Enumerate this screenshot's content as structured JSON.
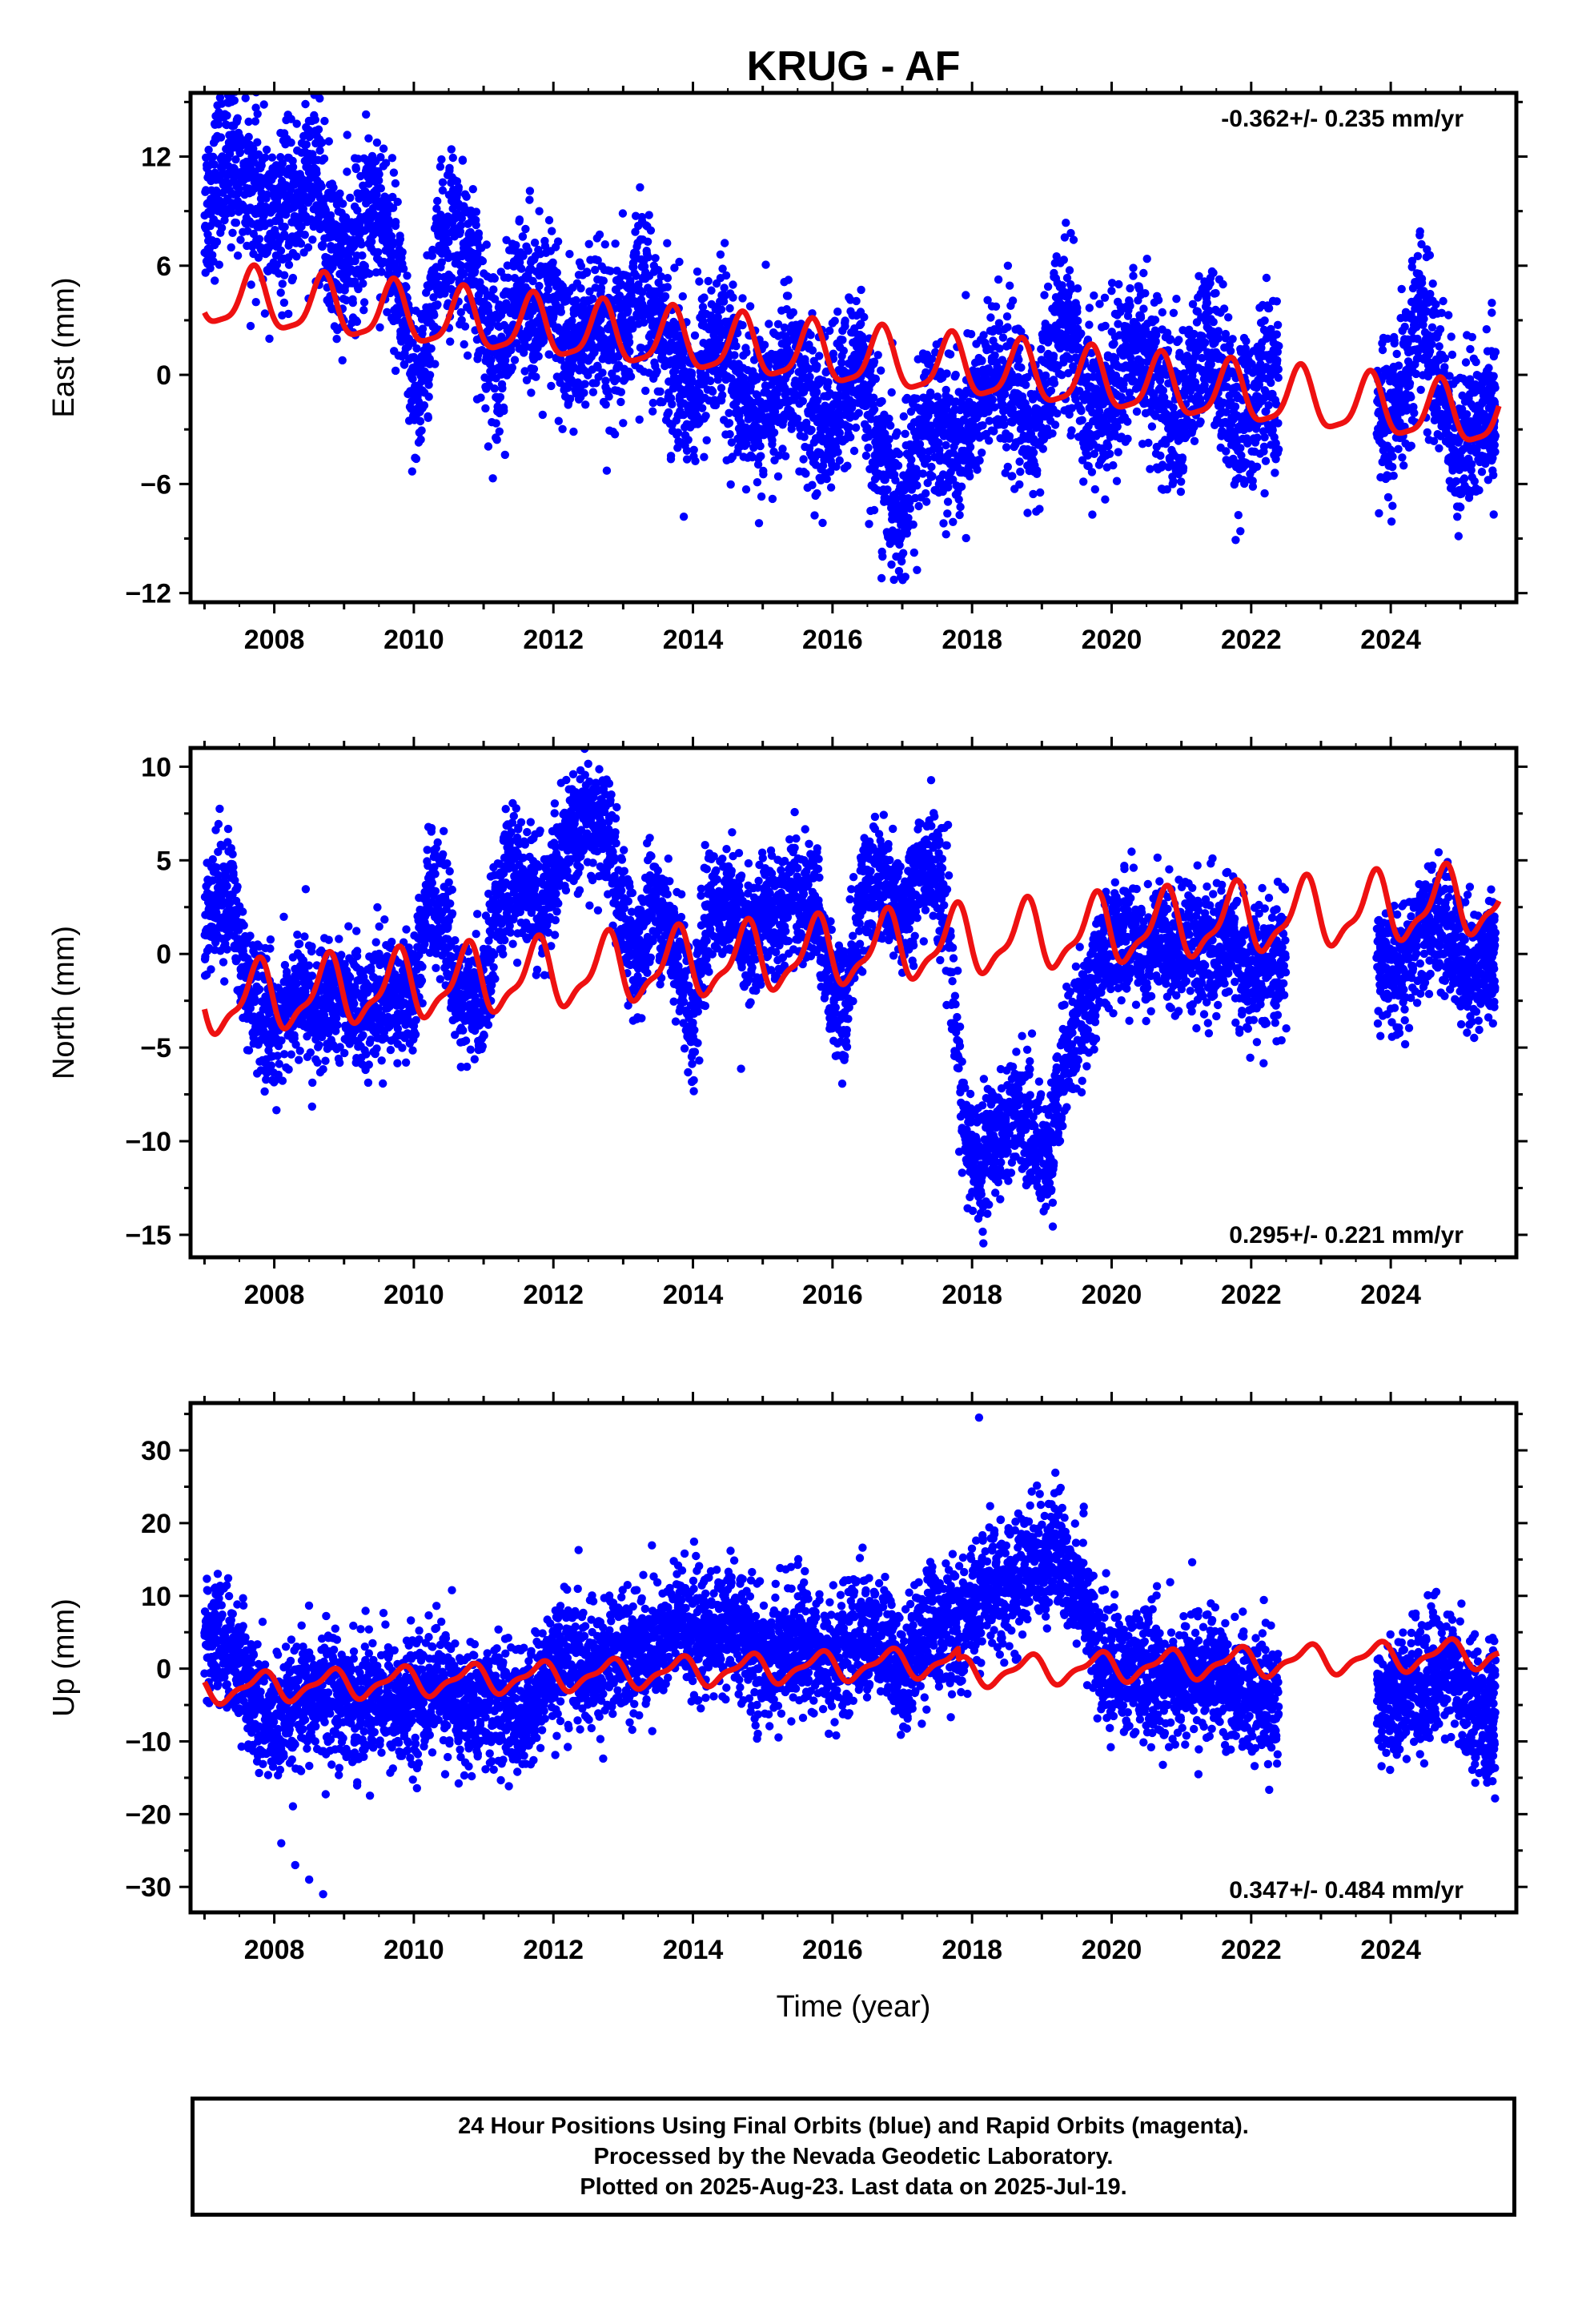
{
  "title": "KRUG - AF",
  "colors": {
    "data": "#0000ff",
    "model": "#ee1111",
    "frame": "#000000"
  },
  "chart_data": [
    {
      "type": "scatter",
      "name": "east",
      "ylabel": "East (mm)",
      "xlabel": "",
      "xlim": [
        2006.8,
        2025.8
      ],
      "ylim": [
        -12.5,
        15.5
      ],
      "xticks": [
        2008,
        2010,
        2012,
        2014,
        2016,
        2018,
        2020,
        2022,
        2024
      ],
      "yticks": [
        -12,
        -6,
        0,
        6,
        12
      ],
      "rate_text": "-0.362+/- 0.235 mm/yr",
      "rate_position": "top-right",
      "series": [
        {
          "values_description": "daily positions",
          "x": [
            2007.0,
            2007.2,
            2007.4,
            2007.6,
            2007.8,
            2008.0,
            2008.2,
            2008.4,
            2008.6,
            2008.8,
            2009.0,
            2009.2,
            2009.4,
            2009.6,
            2009.8,
            2010.0,
            2010.2,
            2010.4,
            2010.6,
            2010.8,
            2011.0,
            2011.2,
            2011.4,
            2011.6,
            2011.8,
            2012.0,
            2012.2,
            2012.4,
            2012.6,
            2012.8,
            2013.0,
            2013.2,
            2013.4,
            2013.6,
            2013.8,
            2014.0,
            2014.2,
            2014.4,
            2014.6,
            2014.8,
            2015.0,
            2015.2,
            2015.4,
            2015.6,
            2015.8,
            2016.0,
            2016.2,
            2016.4,
            2016.6,
            2016.8,
            2017.0,
            2017.2,
            2017.4,
            2017.6,
            2017.8,
            2018.0,
            2018.2,
            2018.4,
            2018.6,
            2018.8,
            2019.0,
            2019.2,
            2019.4,
            2019.6,
            2019.8,
            2020.0,
            2020.2,
            2020.4,
            2020.6,
            2020.8,
            2021.0,
            2021.2,
            2021.4,
            2021.6,
            2021.8,
            2022.0,
            2022.2,
            2022.4,
            2023.8,
            2024.0,
            2024.2,
            2024.4,
            2024.6,
            2024.8,
            2025.0,
            2025.2,
            2025.4,
            2025.5
          ],
          "y": [
            9,
            11,
            12,
            11,
            9,
            8,
            9,
            10,
            11,
            7,
            6,
            7,
            10,
            8,
            5,
            -2,
            2,
            7,
            8,
            6,
            3,
            1,
            3,
            5,
            3,
            4,
            1,
            2,
            3,
            1,
            2,
            5,
            4,
            2,
            0,
            -1,
            1,
            2,
            0,
            -2,
            -2,
            -1,
            1,
            -1,
            -3,
            -2,
            -1,
            1,
            -3,
            -6,
            -8,
            -4,
            -2,
            -3,
            -4,
            -2,
            -1,
            0,
            -1,
            -3,
            -2,
            2,
            3,
            -1,
            -2,
            -1,
            1,
            2,
            0,
            -2,
            -2,
            0,
            2,
            0,
            -3,
            -2,
            0,
            -1,
            -2,
            -3,
            -1,
            4,
            1,
            -2,
            -4,
            -3,
            -1,
            -2
          ],
          "yerr_spread": 2.2
        }
      ],
      "model_peaks_note": "seasonal fit",
      "model": {
        "offset": 4.3,
        "slope": -0.362,
        "t0": 2007.0,
        "amp_annual": 1.6,
        "phase_annual": 0.45,
        "amp_semi": 0.4,
        "phase_semi": 0.1,
        "steps": [
          [
            2017.5,
            0.0
          ]
        ]
      }
    },
    {
      "type": "scatter",
      "name": "north",
      "ylabel": "North (mm)",
      "xlabel": "",
      "xlim": [
        2006.8,
        2025.8
      ],
      "ylim": [
        -16.2,
        11.0
      ],
      "xticks": [
        2008,
        2010,
        2012,
        2014,
        2016,
        2018,
        2020,
        2022,
        2024
      ],
      "yticks": [
        -15,
        -10,
        -5,
        0,
        5,
        10
      ],
      "rate_text": "0.295+/- 0.221 mm/yr",
      "rate_position": "bottom-right",
      "series": [
        {
          "x": [
            2007.0,
            2007.2,
            2007.4,
            2007.6,
            2007.8,
            2008.0,
            2008.2,
            2008.4,
            2008.6,
            2008.8,
            2009.0,
            2009.2,
            2009.4,
            2009.6,
            2009.8,
            2010.0,
            2010.2,
            2010.4,
            2010.6,
            2010.8,
            2011.0,
            2011.2,
            2011.4,
            2011.6,
            2011.8,
            2012.0,
            2012.2,
            2012.4,
            2012.6,
            2012.8,
            2013.0,
            2013.2,
            2013.4,
            2013.6,
            2013.8,
            2014.0,
            2014.2,
            2014.4,
            2014.6,
            2014.8,
            2015.0,
            2015.2,
            2015.4,
            2015.6,
            2015.8,
            2016.0,
            2016.2,
            2016.4,
            2016.6,
            2016.8,
            2017.0,
            2017.2,
            2017.4,
            2017.6,
            2017.9,
            2018.1,
            2018.3,
            2018.5,
            2018.7,
            2018.9,
            2019.1,
            2019.3,
            2019.5,
            2019.7,
            2019.9,
            2020.1,
            2020.3,
            2020.5,
            2020.7,
            2020.9,
            2021.1,
            2021.3,
            2021.5,
            2021.7,
            2021.9,
            2022.1,
            2022.3,
            2022.5,
            2023.8,
            2024.0,
            2024.2,
            2024.4,
            2024.6,
            2024.8,
            2025.0,
            2025.2,
            2025.4,
            2025.5
          ],
          "y": [
            1,
            3,
            3,
            -2,
            -3,
            -4,
            -3,
            -2,
            -3,
            -3,
            -2,
            -3,
            -3,
            -2,
            -2,
            -2,
            3,
            3,
            -2,
            -3,
            -2,
            3,
            4,
            4,
            2,
            4,
            6,
            7,
            7,
            6,
            2,
            -1,
            3,
            2,
            0,
            -4,
            2,
            3,
            2,
            1,
            2,
            2,
            3,
            3,
            2,
            -2,
            -3,
            3,
            4,
            3,
            2,
            4,
            5,
            3,
            -10,
            -11,
            -10,
            -9,
            -8,
            -10,
            -11,
            -6,
            -4,
            -2,
            0,
            1,
            1,
            0,
            1,
            0,
            1,
            0,
            0,
            1,
            -1,
            -1,
            -1,
            0,
            0,
            -1,
            -1,
            1,
            2,
            1,
            0,
            -1,
            0,
            0
          ],
          "yerr_spread": 1.6
        }
      ],
      "model": {
        "offset": -2.6,
        "slope": 0.295,
        "t0": 2007.0,
        "amp_annual": 1.7,
        "phase_annual": 0.5,
        "amp_semi": 0.6,
        "phase_semi": 0.2,
        "steps": []
      }
    },
    {
      "type": "scatter",
      "name": "up",
      "ylabel": "Up (mm)",
      "xlabel": "Time (year)",
      "xlim": [
        2006.8,
        2025.8
      ],
      "ylim": [
        -33.5,
        36.5
      ],
      "xticks": [
        2008,
        2010,
        2012,
        2014,
        2016,
        2018,
        2020,
        2022,
        2024
      ],
      "yticks": [
        -30,
        -20,
        -10,
        0,
        10,
        20,
        30
      ],
      "rate_text": "0.347+/- 0.484 mm/yr",
      "rate_position": "bottom-right",
      "series": [
        {
          "x": [
            2007.0,
            2007.2,
            2007.4,
            2007.6,
            2007.8,
            2008.0,
            2008.2,
            2008.4,
            2008.6,
            2008.8,
            2009.0,
            2009.2,
            2009.4,
            2009.6,
            2009.8,
            2010.0,
            2010.2,
            2010.4,
            2010.6,
            2010.8,
            2011.0,
            2011.2,
            2011.4,
            2011.6,
            2011.8,
            2012.0,
            2012.2,
            2012.4,
            2012.6,
            2012.8,
            2013.0,
            2013.2,
            2013.4,
            2013.6,
            2013.8,
            2014.0,
            2014.2,
            2014.4,
            2014.6,
            2014.8,
            2015.0,
            2015.2,
            2015.4,
            2015.6,
            2015.8,
            2016.0,
            2016.2,
            2016.4,
            2016.6,
            2016.8,
            2017.0,
            2017.2,
            2017.4,
            2017.6,
            2017.8,
            2018.0,
            2018.2,
            2018.4,
            2018.6,
            2018.8,
            2019.0,
            2019.2,
            2019.4,
            2019.6,
            2019.8,
            2020.0,
            2020.2,
            2020.4,
            2020.6,
            2020.8,
            2021.0,
            2021.2,
            2021.4,
            2021.6,
            2021.8,
            2022.0,
            2022.2,
            2022.4,
            2023.8,
            2024.0,
            2024.2,
            2024.4,
            2024.6,
            2024.8,
            2025.0,
            2025.2,
            2025.4,
            2025.5
          ],
          "y": [
            5,
            3,
            2,
            -2,
            -6,
            -8,
            -7,
            -5,
            -4,
            -3,
            -4,
            -5,
            -3,
            -4,
            -6,
            -4,
            -3,
            -2,
            -5,
            -6,
            -4,
            -5,
            -6,
            -7,
            -3,
            1,
            2,
            0,
            -1,
            2,
            3,
            2,
            3,
            4,
            6,
            5,
            4,
            6,
            5,
            3,
            1,
            2,
            3,
            4,
            2,
            1,
            3,
            5,
            4,
            3,
            -2,
            4,
            6,
            6,
            5,
            8,
            10,
            12,
            11,
            14,
            15,
            16,
            13,
            12,
            0,
            1,
            -1,
            -1,
            0,
            -2,
            -2,
            0,
            -1,
            -2,
            -3,
            -3,
            -4,
            -5,
            -3,
            -4,
            -3,
            -2,
            -1,
            0,
            -3,
            -5,
            -7,
            -6
          ],
          "yerr_spread": 4.2
        }
      ],
      "outliers": {
        "x": [
          2008.1,
          2008.3,
          2008.5,
          2008.7,
          2018.1
        ],
        "y": [
          -24,
          -27,
          -29,
          -31,
          34.5
        ]
      },
      "model": {
        "offset": -2.8,
        "slope": 0.347,
        "t0": 2007.0,
        "amp_annual": 1.8,
        "phase_annual": 0.55,
        "amp_semi": 0.7,
        "phase_semi": 0.3,
        "steps": [
          [
            2017.8,
            -1.5
          ]
        ]
      }
    }
  ],
  "footer": {
    "line1": "24 Hour Positions Using Final Orbits (blue) and Rapid Orbits (magenta).",
    "line2": "Processed by the Nevada Geodetic Laboratory.",
    "line3": "Plotted on 2025-Aug-23. Last data on 2025-Jul-19."
  }
}
